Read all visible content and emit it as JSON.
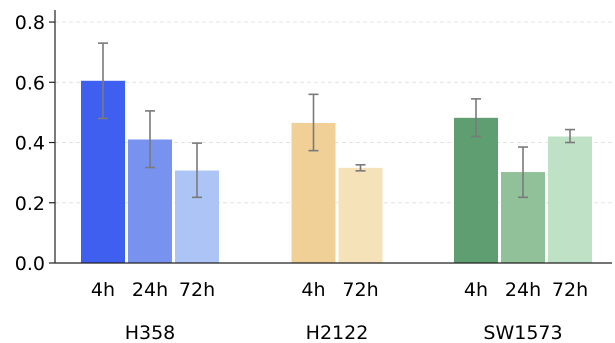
{
  "chart_data": {
    "type": "bar",
    "ylim": [
      0,
      0.84
    ],
    "yticks": [
      "0.0",
      "0.2",
      "0.4",
      "0.6",
      "0.8"
    ],
    "grid": true,
    "groups": [
      {
        "name": "H358",
        "bars": [
          {
            "label": "4h",
            "value": 0.605,
            "err_low": 0.48,
            "err_high": 0.73,
            "color": "#3f5ff0"
          },
          {
            "label": "24h",
            "value": 0.41,
            "err_low": 0.317,
            "err_high": 0.505,
            "color": "#7892ef"
          },
          {
            "label": "72h",
            "value": 0.307,
            "err_low": 0.218,
            "err_high": 0.398,
            "color": "#acc5f6"
          }
        ]
      },
      {
        "name": "H2122",
        "bars": [
          {
            "label": "4h",
            "value": 0.465,
            "err_low": 0.373,
            "err_high": 0.56,
            "color": "#f0d096"
          },
          {
            "label": "72h",
            "value": 0.316,
            "err_low": 0.306,
            "err_high": 0.326,
            "color": "#f6e2b8"
          }
        ]
      },
      {
        "name": "SW1573",
        "bars": [
          {
            "label": "4h",
            "value": 0.482,
            "err_low": 0.42,
            "err_high": 0.545,
            "color": "#5e9e70"
          },
          {
            "label": "24h",
            "value": 0.302,
            "err_low": 0.218,
            "err_high": 0.385,
            "color": "#91c199"
          },
          {
            "label": "72h",
            "value": 0.42,
            "err_low": 0.4,
            "err_high": 0.443,
            "color": "#bfe1c5"
          }
        ]
      }
    ]
  }
}
